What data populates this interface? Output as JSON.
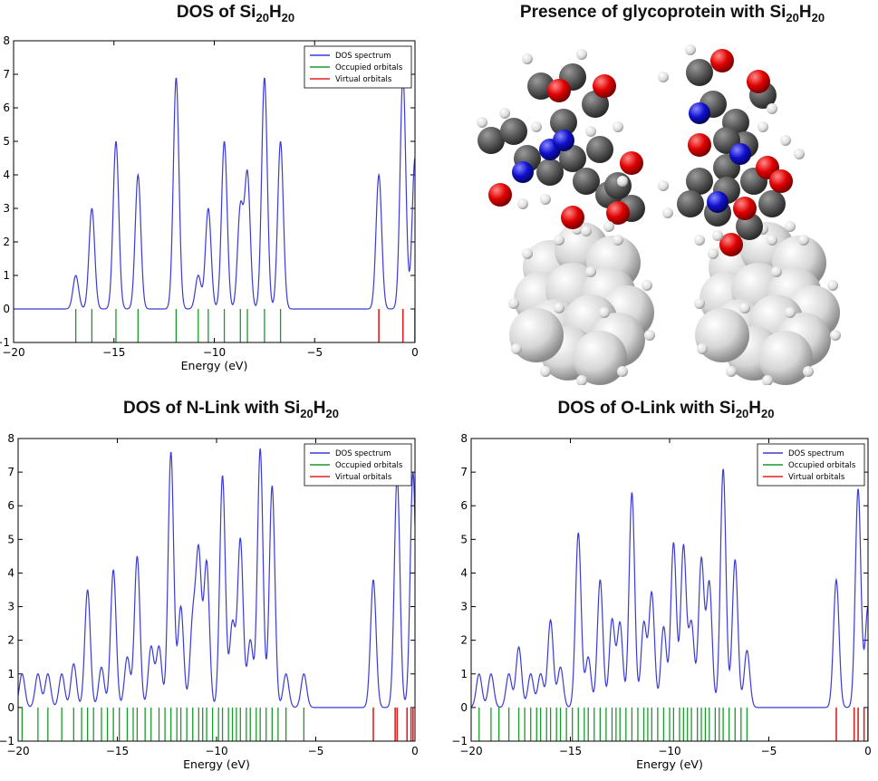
{
  "titles": {
    "top_left": {
      "pre": "DOS of Si",
      "s1": "20",
      "h": "H",
      "s2": "20",
      "post": ""
    },
    "top_right": {
      "pre": "Presence of glycoprotein with Si",
      "s1": "20",
      "h": "H",
      "s2": "20",
      "post": ""
    },
    "bottom_left": {
      "pre": "DOS of N-Link with Si",
      "s1": "20",
      "h": "H",
      "s2": "20",
      "post": ""
    },
    "bottom_right": {
      "pre": "DOS of O-Link with Si",
      "s1": "20",
      "h": "H",
      "s2": "20",
      "post": ""
    }
  },
  "chart_data": [
    {
      "type": "line",
      "title": "DOS of Si20H20",
      "xlabel": "Energy (eV)",
      "ylabel": "",
      "xlim": [
        -20,
        0
      ],
      "ylim": [
        -1,
        8
      ],
      "xticks": [
        -20,
        -15,
        -10,
        -5,
        0
      ],
      "yticks": [
        -1,
        0,
        1,
        2,
        3,
        4,
        5,
        6,
        7,
        8
      ],
      "legend": [
        "DOS spectrum",
        "Occupied orbitals",
        "Virtual orbitals"
      ],
      "legend_position": "top-right",
      "colors": {
        "dos": "#3b3bd6",
        "occupied": "#1a9a2a",
        "virtual": "#e02020"
      },
      "peaks": [
        [
          -16.9,
          1.0
        ],
        [
          -16.1,
          3.0
        ],
        [
          -14.9,
          5.0
        ],
        [
          -13.8,
          4.0
        ],
        [
          -11.9,
          6.9
        ],
        [
          -10.8,
          1.0
        ],
        [
          -10.3,
          3.0
        ],
        [
          -9.5,
          5.0
        ],
        [
          -8.7,
          3.0
        ],
        [
          -8.35,
          4.0
        ],
        [
          -7.5,
          6.9
        ],
        [
          -6.7,
          5.0
        ],
        [
          -1.8,
          4.0
        ],
        [
          -0.6,
          7.0
        ],
        [
          0.0,
          4.5
        ]
      ],
      "occupied": [
        -16.9,
        -16.1,
        -14.9,
        -13.8,
        -11.9,
        -10.8,
        -10.3,
        -9.5,
        -8.7,
        -8.35,
        -7.5,
        -6.7
      ],
      "virtual": [
        -1.8,
        -0.6,
        0.0
      ]
    },
    {
      "type": "line",
      "title": "DOS of N-Link with Si20H20",
      "xlabel": "Energy (eV)",
      "ylabel": "",
      "xlim": [
        -20,
        0
      ],
      "ylim": [
        -1,
        8
      ],
      "xticks": [
        -20,
        -15,
        -10,
        -5,
        0
      ],
      "yticks": [
        -1,
        0,
        1,
        2,
        3,
        4,
        5,
        6,
        7,
        8
      ],
      "legend": [
        "DOS spectrum",
        "Occupied orbitals",
        "Virtual orbitals"
      ],
      "legend_position": "top-right",
      "colors": {
        "dos": "#3b3bd6",
        "occupied": "#1a9a2a",
        "virtual": "#e02020"
      },
      "peaks": [
        [
          -19.8,
          1.0
        ],
        [
          -19.0,
          1.0
        ],
        [
          -18.5,
          1.0
        ],
        [
          -17.8,
          1.0
        ],
        [
          -17.2,
          1.3
        ],
        [
          -16.5,
          3.5
        ],
        [
          -15.8,
          1.2
        ],
        [
          -15.2,
          4.1
        ],
        [
          -14.5,
          1.5
        ],
        [
          -14.0,
          4.5
        ],
        [
          -13.3,
          1.8
        ],
        [
          -12.9,
          1.8
        ],
        [
          -12.3,
          7.6
        ],
        [
          -11.8,
          3.0
        ],
        [
          -11.2,
          2.5
        ],
        [
          -10.9,
          4.5
        ],
        [
          -10.5,
          4.3
        ],
        [
          -9.7,
          6.9
        ],
        [
          -9.2,
          2.5
        ],
        [
          -8.8,
          5.0
        ],
        [
          -8.3,
          2.0
        ],
        [
          -7.8,
          7.7
        ],
        [
          -7.2,
          6.6
        ],
        [
          -6.5,
          1.0
        ],
        [
          -5.6,
          1.0
        ],
        [
          -2.1,
          3.8
        ],
        [
          -0.9,
          6.9
        ],
        [
          -0.1,
          7.0
        ]
      ],
      "occupied": [
        -19.8,
        -19.0,
        -18.5,
        -17.8,
        -17.2,
        -16.8,
        -16.5,
        -16.2,
        -15.8,
        -15.5,
        -15.2,
        -14.9,
        -14.5,
        -14.2,
        -14.0,
        -13.6,
        -13.3,
        -12.9,
        -12.6,
        -12.3,
        -12.0,
        -11.8,
        -11.5,
        -11.2,
        -10.9,
        -10.7,
        -10.5,
        -10.2,
        -9.9,
        -9.7,
        -9.4,
        -9.2,
        -9.0,
        -8.8,
        -8.5,
        -8.3,
        -8.0,
        -7.8,
        -7.5,
        -7.2,
        -6.9,
        -6.5,
        -5.6
      ],
      "virtual": [
        -2.1,
        -1.0,
        -0.9,
        -0.4,
        -0.2,
        -0.1
      ]
    },
    {
      "type": "line",
      "title": "DOS of O-Link with Si20H20",
      "xlabel": "Energy (eV)",
      "ylabel": "",
      "xlim": [
        -20,
        0
      ],
      "ylim": [
        -1,
        8
      ],
      "xticks": [
        -20,
        -15,
        -10,
        -5,
        0
      ],
      "yticks": [
        -1,
        0,
        1,
        2,
        3,
        4,
        5,
        6,
        7,
        8
      ],
      "legend": [
        "DOS spectrum",
        "Occupied orbitals",
        "Virtual orbitals"
      ],
      "legend_position": "top-right",
      "colors": {
        "dos": "#3b3bd6",
        "occupied": "#1a9a2a",
        "virtual": "#e02020"
      },
      "peaks": [
        [
          -19.6,
          1.0
        ],
        [
          -19.0,
          1.0
        ],
        [
          -18.1,
          1.0
        ],
        [
          -17.6,
          1.8
        ],
        [
          -17.0,
          1.0
        ],
        [
          -16.5,
          1.0
        ],
        [
          -16.0,
          2.6
        ],
        [
          -15.5,
          1.2
        ],
        [
          -14.6,
          5.2
        ],
        [
          -14.1,
          1.5
        ],
        [
          -13.5,
          3.8
        ],
        [
          -12.9,
          2.6
        ],
        [
          -12.5,
          2.5
        ],
        [
          -11.9,
          6.4
        ],
        [
          -11.3,
          2.5
        ],
        [
          -10.9,
          3.4
        ],
        [
          -10.3,
          2.4
        ],
        [
          -9.8,
          4.9
        ],
        [
          -9.3,
          4.8
        ],
        [
          -8.9,
          2.5
        ],
        [
          -8.4,
          4.4
        ],
        [
          -8.0,
          3.7
        ],
        [
          -7.3,
          7.1
        ],
        [
          -6.7,
          4.4
        ],
        [
          -6.1,
          1.7
        ],
        [
          -1.6,
          3.8
        ],
        [
          -0.5,
          6.5
        ],
        [
          0.0,
          3.0
        ]
      ],
      "occupied": [
        -19.6,
        -19.0,
        -18.6,
        -18.1,
        -17.6,
        -17.3,
        -17.0,
        -16.7,
        -16.5,
        -16.2,
        -16.0,
        -15.7,
        -15.5,
        -15.2,
        -14.9,
        -14.6,
        -14.3,
        -14.1,
        -13.8,
        -13.5,
        -13.2,
        -12.9,
        -12.7,
        -12.5,
        -12.2,
        -11.9,
        -11.6,
        -11.3,
        -11.1,
        -10.9,
        -10.6,
        -10.3,
        -10.0,
        -9.8,
        -9.5,
        -9.3,
        -9.1,
        -8.9,
        -8.6,
        -8.4,
        -8.2,
        -8.0,
        -7.7,
        -7.5,
        -7.3,
        -7.0,
        -6.7,
        -6.4,
        -6.1
      ],
      "virtual": [
        -1.6,
        -0.7,
        -0.5,
        -0.2,
        0.0
      ]
    }
  ]
}
